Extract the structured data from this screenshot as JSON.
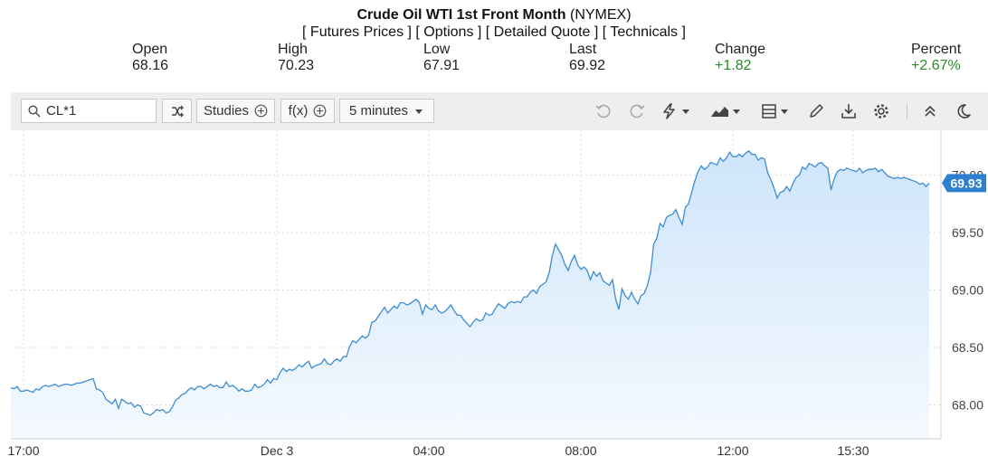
{
  "header": {
    "title_bold": "Crude Oil WTI 1st Front Month",
    "title_exchange": "(NYMEX)",
    "links": [
      "[ Futures Prices ]",
      "[ Options ]",
      "[ Detailed Quote ]",
      "[ Technicals ]"
    ]
  },
  "stats": [
    {
      "label": "Open",
      "value": "68.16",
      "positive": false
    },
    {
      "label": "High",
      "value": "70.23",
      "positive": false
    },
    {
      "label": "Low",
      "value": "67.91",
      "positive": false
    },
    {
      "label": "Last",
      "value": "69.92",
      "positive": false
    },
    {
      "label": "Change",
      "value": "+1.82",
      "positive": true
    },
    {
      "label": "Percent",
      "value": "+2.67%",
      "positive": true
    }
  ],
  "toolbar": {
    "symbol": "CL*1",
    "studies_label": "Studies",
    "fx_label": "f(x)",
    "interval_label": "5 minutes",
    "icons": [
      "undo-icon",
      "redo-icon",
      "lightning-icon",
      "chart-type-icon",
      "layout-icon",
      "pencil-icon",
      "download-icon",
      "settings-icon",
      "collapse-icon",
      "dark-mode-icon"
    ]
  },
  "colors": {
    "line": "#3c8dd4",
    "fill_top": "#cfe5fb",
    "fill_bottom": "#f4f9fe",
    "price_badge": "#2e7fd0",
    "positive": "#2a8a2a",
    "toolbar_bg": "#eeeeee"
  },
  "chart_data": {
    "type": "area",
    "y_ticks": [
      "68.00",
      "68.50",
      "69.00",
      "69.50",
      "70.00"
    ],
    "ylim": [
      67.8,
      70.3
    ],
    "x_ticks": [
      "17:00",
      "Dec 3",
      "04:00",
      "08:00",
      "12:00",
      "15:30"
    ],
    "x_tick_index": [
      4,
      84,
      132,
      180,
      228,
      266
    ],
    "last_price": "69.93",
    "series": [
      {
        "values": [
          68.15,
          68.14,
          68.16,
          68.12,
          68.12,
          68.13,
          68.12,
          68.11,
          68.14,
          68.13,
          68.16,
          68.17,
          68.16,
          68.17,
          68.18,
          68.16,
          68.17,
          68.18,
          68.18,
          68.17,
          68.18,
          68.19,
          68.19,
          68.2,
          68.21,
          68.22,
          68.23,
          68.14,
          68.13,
          68.11,
          68.05,
          68.03,
          68.01,
          68.05,
          67.97,
          68.05,
          68.03,
          68.01,
          68.02,
          67.98,
          68.0,
          67.99,
          67.93,
          67.92,
          67.91,
          67.93,
          67.96,
          67.95,
          67.96,
          67.93,
          67.94,
          67.98,
          68.04,
          68.06,
          68.09,
          68.1,
          68.13,
          68.15,
          68.13,
          68.16,
          68.16,
          68.14,
          68.16,
          68.18,
          68.16,
          68.17,
          68.15,
          68.15,
          68.2,
          68.16,
          68.17,
          68.15,
          68.12,
          68.14,
          68.12,
          68.12,
          68.13,
          68.18,
          68.15,
          68.16,
          68.18,
          68.22,
          68.19,
          68.23,
          68.22,
          68.28,
          68.32,
          68.29,
          68.31,
          68.3,
          68.32,
          68.35,
          68.33,
          68.36,
          68.38,
          68.32,
          68.34,
          68.35,
          68.36,
          68.4,
          68.36,
          68.35,
          68.38,
          68.4,
          68.38,
          68.42,
          68.42,
          68.51,
          68.56,
          68.54,
          68.57,
          68.6,
          68.58,
          68.61,
          68.72,
          68.73,
          68.77,
          68.81,
          68.85,
          68.8,
          68.83,
          68.86,
          68.84,
          68.89,
          68.89,
          68.87,
          68.88,
          68.9,
          68.92,
          68.89,
          68.79,
          68.87,
          68.84,
          68.83,
          68.87,
          68.82,
          68.8,
          68.81,
          68.84,
          68.87,
          68.82,
          68.78,
          68.78,
          68.74,
          68.71,
          68.68,
          68.72,
          68.75,
          68.73,
          68.74,
          68.8,
          68.78,
          68.79,
          68.84,
          68.88,
          68.86,
          68.84,
          68.88,
          68.9,
          68.89,
          68.9,
          68.89,
          68.94,
          68.94,
          68.98,
          69.0,
          68.97,
          69.03,
          69.05,
          69.07,
          69.15,
          69.3,
          69.4,
          69.35,
          69.3,
          69.22,
          69.17,
          69.25,
          69.3,
          69.22,
          69.18,
          69.2,
          69.17,
          69.09,
          69.16,
          69.12,
          69.15,
          69.08,
          69.06,
          69.04,
          69.09,
          68.92,
          68.83,
          69.01,
          68.95,
          68.92,
          68.98,
          68.92,
          68.88,
          68.95,
          68.97,
          69.04,
          69.15,
          69.4,
          69.45,
          69.58,
          69.55,
          69.63,
          69.65,
          69.66,
          69.7,
          69.63,
          69.57,
          69.72,
          69.75,
          69.85,
          69.95,
          70.03,
          70.08,
          70.05,
          70.07,
          70.11,
          70.1,
          70.09,
          70.15,
          70.12,
          70.15,
          70.2,
          70.16,
          70.16,
          70.18,
          70.16,
          70.19,
          70.21,
          70.18,
          70.18,
          70.13,
          70.15,
          70.14,
          70.02,
          69.96,
          69.89,
          69.8,
          69.85,
          69.86,
          69.9,
          69.86,
          69.93,
          69.98,
          70.0,
          70.07,
          70.05,
          70.1,
          70.09,
          70.07,
          70.1,
          70.11,
          70.08,
          70.06,
          69.87,
          69.97,
          70.03,
          70.05,
          70.04,
          70.06,
          70.05,
          70.04,
          70.03,
          70.06,
          70.02,
          70.04,
          70.05,
          70.05,
          70.06,
          70.03,
          70.05,
          70.02,
          69.99,
          69.98,
          69.97,
          69.98,
          69.97,
          69.98,
          69.97,
          69.96,
          69.95,
          69.94,
          69.92,
          69.93,
          69.9,
          69.93
        ]
      }
    ]
  }
}
